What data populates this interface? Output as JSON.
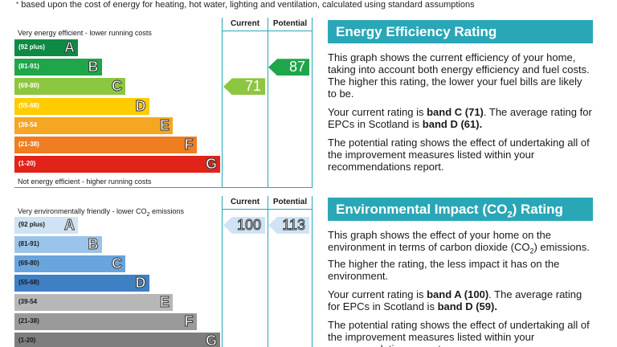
{
  "footnote": "based upon the cost of energy for heating, hot water, lighting and ventilation, calculated using standard assumptions",
  "footnote_mark": "*",
  "columns": {
    "current": "Current",
    "potential": "Potential"
  },
  "energy_chart": {
    "top_label": "Very energy efficient - lower running costs",
    "bottom_label": "Not energy efficient - higher running costs",
    "bands": [
      {
        "range": "(92 plus)",
        "letter": "A",
        "color": "#0e8a45"
      },
      {
        "range": "(81-91)",
        "letter": "B",
        "color": "#1fa54a"
      },
      {
        "range": "(69-80)",
        "letter": "C",
        "color": "#8dc63f"
      },
      {
        "range": "(55-68)",
        "letter": "D",
        "color": "#ffcc00"
      },
      {
        "range": "(39-54",
        "letter": "E",
        "color": "#f5a623"
      },
      {
        "range": "(21-38)",
        "letter": "F",
        "color": "#ef7d22"
      },
      {
        "range": "(1-20)",
        "letter": "G",
        "color": "#e2231a"
      }
    ],
    "current_rating": "71",
    "current_band_index": 2,
    "current_color": "#8dc63f",
    "potential_rating": "87",
    "potential_band_index": 1,
    "potential_color": "#1fa54a"
  },
  "environment_chart": {
    "top_label": "Very environmentally friendly - lower CO",
    "top_label_sub": "2",
    "top_label_end": " emissions",
    "bands": [
      {
        "range": "(92 plus)",
        "letter": "A",
        "color": "#cfe3f5"
      },
      {
        "range": "(81-91)",
        "letter": "B",
        "color": "#9cc4ea"
      },
      {
        "range": "(69-80)",
        "letter": "C",
        "color": "#6aa4dc"
      },
      {
        "range": "(55-68)",
        "letter": "D",
        "color": "#3f7fc4"
      },
      {
        "range": "(39-54",
        "letter": "E",
        "color": "#b7b7b7"
      },
      {
        "range": "(21-38)",
        "letter": "F",
        "color": "#9a9a9a"
      },
      {
        "range": "(1-20)",
        "letter": "G",
        "color": "#7d7d7d"
      }
    ],
    "current_rating": "100",
    "current_band_index": 0,
    "current_color": "#cfe3f5",
    "potential_rating": "113",
    "potential_band_index": 0,
    "potential_color": "#cfe3f5"
  },
  "energy_panel": {
    "title": "Energy Efficiency Rating",
    "p1": "This graph shows the current efficiency of your home, taking into account both energy efficiency and fuel costs. The higher this rating, the lower your fuel bills are likely to be.",
    "p2_a": "Your current rating is ",
    "p2_b": "band C (71)",
    "p2_c": ". The average rating for EPCs in Scotland is ",
    "p2_d": "band D (61).",
    "p3": "The potential rating shows the effect of undertaking all of the improvement measures listed within your recommendations report."
  },
  "environment_panel": {
    "title_a": "Environmental Impact (CO",
    "title_sub": "2",
    "title_b": ") Rating",
    "p1_a": "This graph shows the effect of your home on the environment in terms of carbon dioxide (CO",
    "p1_sub": "2",
    "p1_b": ") emissions. The higher the rating, the less impact it has on the environment.",
    "p2_a": "Your current rating is ",
    "p2_b": "band A (100)",
    "p2_c": ". The average rating for EPCs in Scotland is ",
    "p2_d": "band D (59).",
    "p3": "The potential rating shows the effect of undertaking all of the improvement measures listed within your recommendations report."
  }
}
